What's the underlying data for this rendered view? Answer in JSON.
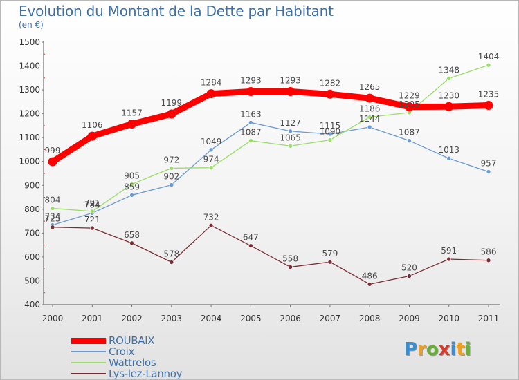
{
  "chart_data": {
    "type": "line",
    "title": "Evolution du Montant de la Dette par Habitant",
    "ylabel": "(en €)",
    "ylim": [
      400,
      1500
    ],
    "yticks": [
      400,
      500,
      600,
      700,
      800,
      900,
      1000,
      1100,
      1200,
      1300,
      1400,
      1500
    ],
    "grid": false,
    "legend_position": "bottom-left",
    "categories": [
      "2000",
      "2001",
      "2002",
      "2003",
      "2004",
      "2005",
      "2006",
      "2007",
      "2008",
      "2009",
      "2010",
      "2011"
    ],
    "series": [
      {
        "name": "ROUBAIX",
        "color": "#ff0000",
        "values": [
          999,
          1106,
          1157,
          1199,
          1284,
          1293,
          1293,
          1282,
          1265,
          1229,
          1230,
          1235
        ],
        "emphasis": true
      },
      {
        "name": "Croix",
        "color": "#6b9bd3",
        "values": [
          734,
          784,
          859,
          902,
          1049,
          1163,
          1127,
          1115,
          1144,
          1087,
          1013,
          957
        ]
      },
      {
        "name": "Wattrelos",
        "color": "#99dd66",
        "values": [
          804,
          791,
          905,
          972,
          974,
          1087,
          1065,
          1090,
          1186,
          1205,
          1348,
          1404
        ]
      },
      {
        "name": "Lys-lez-Lannoy",
        "color": "#7a2e33",
        "values": [
          725,
          721,
          658,
          578,
          732,
          647,
          558,
          579,
          486,
          520,
          591,
          586
        ]
      }
    ]
  },
  "brand": {
    "letters": [
      "P",
      "r",
      "o",
      "x",
      "i",
      "t",
      "i"
    ],
    "colors": [
      "#3a8fd1",
      "#f0a020",
      "#66b033",
      "#d83a2b",
      "#3a8fd1",
      "#f0a020",
      "#66b033"
    ]
  }
}
